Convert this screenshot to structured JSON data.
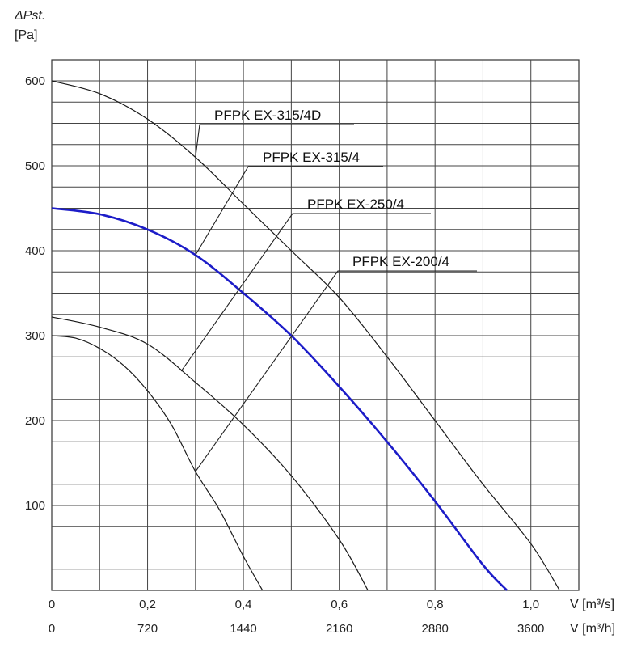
{
  "chart_data": {
    "type": "line",
    "y_title_line1": "ΔPst.",
    "y_title_line2": "[Pa]",
    "x_unit_label_1": "V [m³/s]",
    "x_unit_label_2": "V [m³/h]",
    "xlim": [
      0,
      1.1
    ],
    "ylim": [
      0,
      600
    ],
    "grid": true,
    "x_ticks_primary": [
      {
        "value": 0,
        "label": "0"
      },
      {
        "value": 0.2,
        "label": "0,2"
      },
      {
        "value": 0.4,
        "label": "0,4"
      },
      {
        "value": 0.6,
        "label": "0,6"
      },
      {
        "value": 0.8,
        "label": "0,8"
      },
      {
        "value": 1.0,
        "label": "1,0"
      }
    ],
    "x_ticks_secondary": [
      {
        "value": 0,
        "label": "0"
      },
      {
        "value": 0.2,
        "label": "720"
      },
      {
        "value": 0.4,
        "label": "1440"
      },
      {
        "value": 0.6,
        "label": "2160"
      },
      {
        "value": 0.8,
        "label": "2880"
      },
      {
        "value": 1.0,
        "label": "3600"
      }
    ],
    "y_ticks": [
      {
        "value": 100,
        "label": "100"
      },
      {
        "value": 200,
        "label": "200"
      },
      {
        "value": 300,
        "label": "300"
      },
      {
        "value": 400,
        "label": "400"
      },
      {
        "value": 500,
        "label": "500"
      },
      {
        "value": 600,
        "label": "600"
      }
    ],
    "series": [
      {
        "name": "PFPK EX-315/4D",
        "color": "#1a1a1a",
        "x": [
          0,
          0.1,
          0.2,
          0.3,
          0.4,
          0.5,
          0.6,
          0.7,
          0.8,
          0.9,
          1.0,
          1.06
        ],
        "y": [
          600,
          585,
          555,
          510,
          455,
          400,
          345,
          275,
          200,
          125,
          55,
          0
        ]
      },
      {
        "name": "PFPK EX-315/4",
        "color": "#1c1cc8",
        "x": [
          0,
          0.1,
          0.2,
          0.3,
          0.4,
          0.5,
          0.6,
          0.7,
          0.8,
          0.9,
          0.95
        ],
        "y": [
          450,
          443,
          425,
          395,
          350,
          300,
          240,
          175,
          105,
          30,
          0
        ]
      },
      {
        "name": "PFPK EX-250/4",
        "color": "#1a1a1a",
        "x": [
          0,
          0.1,
          0.2,
          0.3,
          0.4,
          0.5,
          0.6,
          0.66
        ],
        "y": [
          322,
          310,
          290,
          245,
          195,
          135,
          60,
          0
        ]
      },
      {
        "name": "PFPK EX-200/4",
        "color": "#1a1a1a",
        "x": [
          0,
          0.05,
          0.1,
          0.15,
          0.2,
          0.25,
          0.3,
          0.35,
          0.4,
          0.44
        ],
        "y": [
          300,
          297,
          285,
          265,
          235,
          195,
          140,
          95,
          40,
          0
        ]
      }
    ],
    "annotations": [
      {
        "text": "PFPK EX-315/4D",
        "series": "PFPK EX-315/4D",
        "leader_from": [
          0.3,
          510
        ]
      },
      {
        "text": "PFPK EX-315/4",
        "series": "PFPK EX-315/4",
        "leader_from": [
          0.3,
          395
        ]
      },
      {
        "text": "PFPK EX-250/4",
        "series": "PFPK EX-250/4",
        "leader_from": [
          0.27,
          258
        ]
      },
      {
        "text": "PFPK EX-200/4",
        "series": "PFPK EX-200/4",
        "leader_from": [
          0.3,
          140
        ]
      }
    ]
  }
}
